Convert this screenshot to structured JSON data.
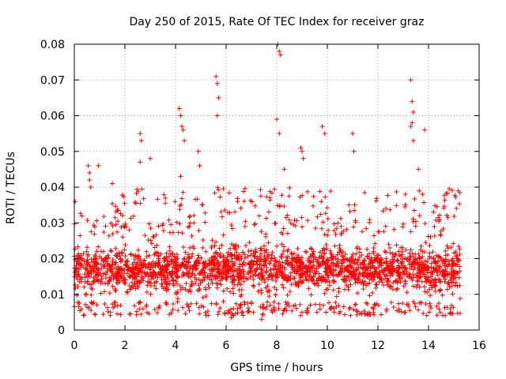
{
  "chart_data": {
    "type": "scatter",
    "title": "Day 250 of 2015, Rate Of TEC Index for receiver graz",
    "xlabel": "GPS time / hours",
    "ylabel": "ROTI / TECUs",
    "xlim": [
      0,
      16
    ],
    "ylim": [
      0,
      0.08
    ],
    "xticks": [
      0,
      2,
      4,
      6,
      8,
      10,
      12,
      14,
      16
    ],
    "yticks": [
      0,
      0.01,
      0.02,
      0.03,
      0.04,
      0.05,
      0.06,
      0.07,
      0.08
    ],
    "xtick_labels": [
      "0",
      "2",
      "4",
      "6",
      "8",
      "10",
      "12",
      "14",
      "16"
    ],
    "ytick_labels": [
      "0",
      "0.01",
      "0.02",
      "0.03",
      "0.04",
      "0.05",
      "0.06",
      "0.07",
      "0.08"
    ],
    "grid": true,
    "marker": "+",
    "color": "#ff0000",
    "series": [
      {
        "name": "graz",
        "x_range": [
          0.0,
          15.25
        ],
        "y_core_range": [
          0.008,
          0.026
        ],
        "x": [
          0.55,
          0.6,
          0.6,
          0.65,
          0.95,
          1.5,
          2.6,
          2.65,
          2.6,
          3.0,
          4.15,
          4.2,
          4.25,
          4.3,
          4.35,
          4.2,
          4.9,
          4.95,
          5.6,
          5.65,
          5.7,
          5.65,
          8.05,
          8.1,
          8.15,
          8.0,
          8.1,
          8.3,
          8.95,
          9.0,
          9.05,
          9.8,
          9.9,
          11.0,
          11.05,
          13.3,
          13.35,
          13.4,
          13.35,
          13.3,
          13.4,
          13.6,
          13.85,
          6.2,
          6.15,
          7.4,
          7.45,
          9.0
        ],
        "y": [
          0.046,
          0.044,
          0.042,
          0.04,
          0.046,
          0.041,
          0.055,
          0.053,
          0.047,
          0.048,
          0.062,
          0.06,
          0.057,
          0.056,
          0.053,
          0.043,
          0.05,
          0.046,
          0.071,
          0.069,
          0.065,
          0.06,
          0.08,
          0.078,
          0.077,
          0.059,
          0.055,
          0.045,
          0.051,
          0.05,
          0.048,
          0.057,
          0.055,
          0.055,
          0.05,
          0.07,
          0.064,
          0.061,
          0.058,
          0.057,
          0.053,
          0.045,
          0.056,
          0.0035,
          0.005,
          0.003,
          0.0045,
          0.005
        ]
      }
    ]
  }
}
